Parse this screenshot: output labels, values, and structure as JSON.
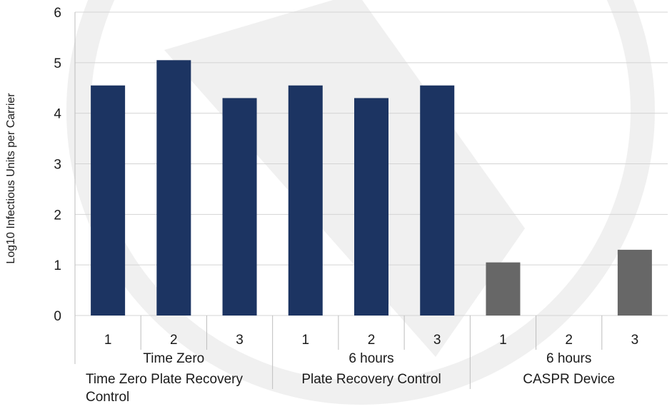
{
  "chart_data": {
    "type": "bar",
    "ylabel": "Log10 Infectious Units per Carrier",
    "ylim": [
      0,
      6
    ],
    "yticks": [
      "0",
      "1",
      "2",
      "3",
      "4",
      "5",
      "6"
    ],
    "grid": true,
    "categories": [
      "1",
      "2",
      "3",
      "1",
      "2",
      "3",
      "1",
      "2",
      "3"
    ],
    "values": [
      4.55,
      5.05,
      4.3,
      4.55,
      4.3,
      4.55,
      1.05,
      0,
      1.3
    ],
    "bar_colors": [
      "#1c3462",
      "#1c3462",
      "#1c3462",
      "#1c3462",
      "#1c3462",
      "#1c3462",
      "#676767",
      "#676767",
      "#676767"
    ],
    "groups_level2": [
      "Time Zero",
      "6 hours",
      "6 hours"
    ],
    "groups_level3": [
      "Time Zero Plate Recovery Control",
      "Plate Recovery Control",
      "CASPR Device"
    ]
  },
  "colors": {
    "treated_bar": "#1c3462",
    "device_bar": "#676767",
    "gridline": "#d4d4d4",
    "watermark": "#f0f0f0"
  }
}
